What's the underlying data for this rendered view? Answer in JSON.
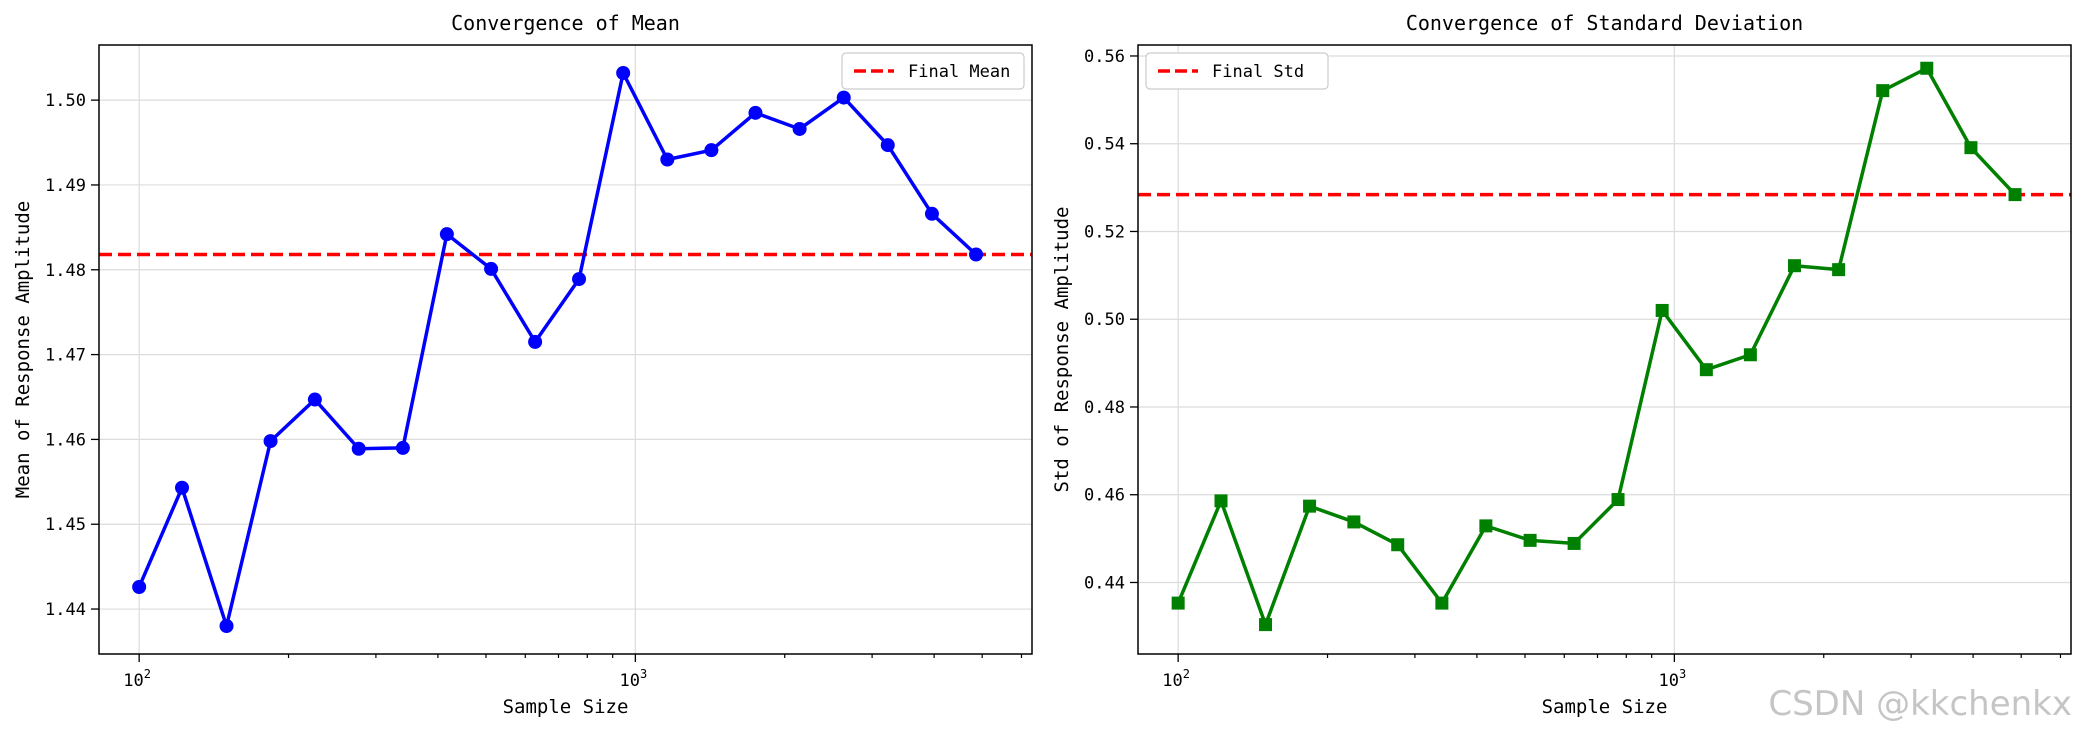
{
  "watermark": "CSDN @kkchenkx",
  "chart_data": [
    {
      "type": "line",
      "title": "Convergence of Mean",
      "xlabel": "Sample Size",
      "ylabel": "Mean of Response Amplitude",
      "xscale": "log",
      "xlim": [
        83,
        6300
      ],
      "ylim": [
        1.4347,
        1.5065
      ],
      "grid": true,
      "legend_position": "top-right",
      "x_major_ticks": [
        100,
        1000
      ],
      "x_tick_labels": [
        "10",
        "10"
      ],
      "x_tick_exponents": [
        "2",
        "3"
      ],
      "x_minor_ticks": [
        200,
        300,
        400,
        500,
        600,
        700,
        800,
        900,
        2000,
        3000,
        4000,
        5000,
        6000
      ],
      "yticks": [
        1.44,
        1.45,
        1.46,
        1.47,
        1.48,
        1.49,
        1.5
      ],
      "ytick_labels": [
        "1.44",
        "1.45",
        "1.46",
        "1.47",
        "1.48",
        "1.49",
        "1.50"
      ],
      "series": [
        {
          "name": "Mean",
          "color": "#0000ff",
          "marker": "circle",
          "x": [
            100,
            122,
            150,
            184,
            226,
            277,
            340,
            417,
            512,
            628,
            770,
            945,
            1160,
            1423,
            1746,
            2143,
            2630,
            3226,
            3960,
            4859
          ],
          "values": [
            1.4426,
            1.4543,
            1.438,
            1.4598,
            1.4647,
            1.4589,
            1.459,
            1.4842,
            1.4801,
            1.4715,
            1.4789,
            1.5032,
            1.493,
            1.4941,
            1.4985,
            1.4966,
            1.5003,
            1.4947,
            1.4866,
            1.4818
          ]
        }
      ],
      "reference_line": {
        "name": "Final Mean",
        "value": 1.4818,
        "color": "#ff0000",
        "style": "dashed"
      }
    },
    {
      "type": "line",
      "title": "Convergence of Standard Deviation",
      "xlabel": "Sample Size",
      "ylabel": "Std of Response Amplitude",
      "xscale": "log",
      "xlim": [
        83,
        6300
      ],
      "ylim": [
        0.4237,
        0.5625
      ],
      "grid": true,
      "legend_position": "top-left",
      "x_major_ticks": [
        100,
        1000
      ],
      "x_tick_labels": [
        "10",
        "10"
      ],
      "x_tick_exponents": [
        "2",
        "3"
      ],
      "x_minor_ticks": [
        200,
        300,
        400,
        500,
        600,
        700,
        800,
        900,
        2000,
        3000,
        4000,
        5000,
        6000
      ],
      "yticks": [
        0.44,
        0.46,
        0.48,
        0.5,
        0.52,
        0.54,
        0.56
      ],
      "ytick_labels": [
        "0.44",
        "0.46",
        "0.48",
        "0.50",
        "0.52",
        "0.54",
        "0.56"
      ],
      "series": [
        {
          "name": "Std",
          "color": "#008000",
          "marker": "square",
          "x": [
            100,
            122,
            150,
            184,
            226,
            277,
            340,
            417,
            512,
            628,
            770,
            945,
            1160,
            1423,
            1746,
            2143,
            2630,
            3226,
            3960,
            4859
          ],
          "values": [
            0.4353,
            0.4586,
            0.4304,
            0.4574,
            0.4538,
            0.4486,
            0.4353,
            0.4529,
            0.4496,
            0.4489,
            0.4589,
            0.502,
            0.4885,
            0.4919,
            0.5122,
            0.5113,
            0.5521,
            0.5572,
            0.5391,
            0.5284
          ]
        }
      ],
      "reference_line": {
        "name": "Final Std",
        "value": 0.5284,
        "color": "#ff0000",
        "style": "dashed"
      }
    }
  ]
}
